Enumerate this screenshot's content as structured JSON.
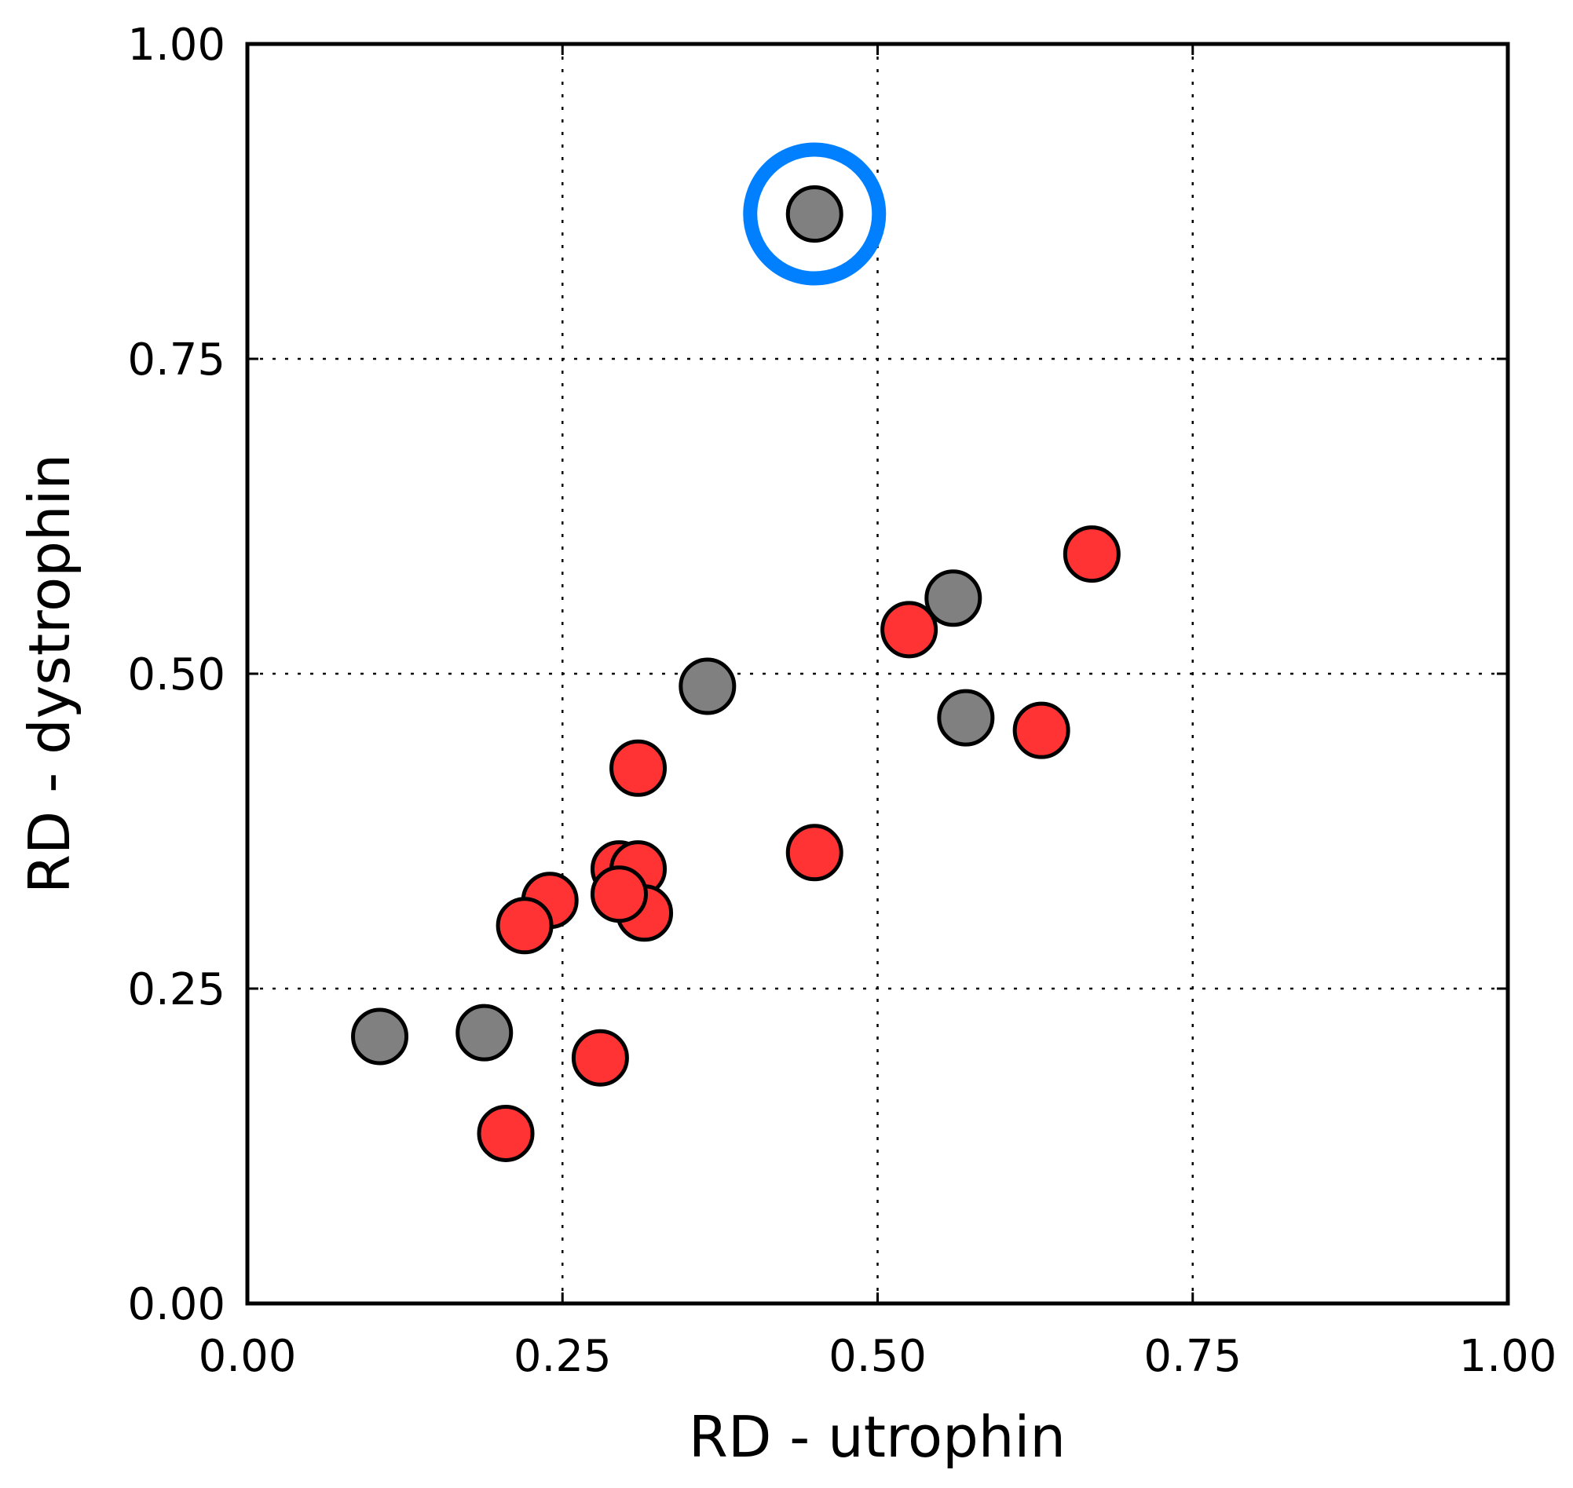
{
  "chart_data": {
    "type": "scatter",
    "title": "",
    "xlabel": "RD - utrophin",
    "ylabel": "RD - dystrophin",
    "xlim": [
      0.0,
      1.0
    ],
    "ylim": [
      0.0,
      1.0
    ],
    "xticks": [
      0.0,
      0.25,
      0.5,
      0.75,
      1.0
    ],
    "yticks": [
      0.0,
      0.25,
      0.5,
      0.75,
      1.0
    ],
    "xtick_labels": [
      "0.00",
      "0.25",
      "0.50",
      "0.75",
      "1.00"
    ],
    "ytick_labels": [
      "0.00",
      "0.25",
      "0.50",
      "0.75",
      "1.00"
    ],
    "grid": true,
    "series": [
      {
        "name": "red",
        "color": "#ff3333",
        "points": [
          {
            "x": 0.67,
            "y": 0.595
          },
          {
            "x": 0.525,
            "y": 0.535
          },
          {
            "x": 0.63,
            "y": 0.455
          },
          {
            "x": 0.31,
            "y": 0.425
          },
          {
            "x": 0.45,
            "y": 0.358
          },
          {
            "x": 0.295,
            "y": 0.345
          },
          {
            "x": 0.31,
            "y": 0.345
          },
          {
            "x": 0.24,
            "y": 0.32
          },
          {
            "x": 0.315,
            "y": 0.31
          },
          {
            "x": 0.295,
            "y": 0.325
          },
          {
            "x": 0.22,
            "y": 0.3
          },
          {
            "x": 0.28,
            "y": 0.195
          },
          {
            "x": 0.205,
            "y": 0.135
          }
        ]
      },
      {
        "name": "gray",
        "color": "#808080",
        "points": [
          {
            "x": 0.45,
            "y": 0.865
          },
          {
            "x": 0.56,
            "y": 0.56
          },
          {
            "x": 0.365,
            "y": 0.49
          },
          {
            "x": 0.57,
            "y": 0.465
          },
          {
            "x": 0.105,
            "y": 0.212
          },
          {
            "x": 0.188,
            "y": 0.215
          }
        ]
      }
    ],
    "highlight": {
      "x": 0.45,
      "y": 0.865,
      "color": "#0080ff"
    }
  }
}
